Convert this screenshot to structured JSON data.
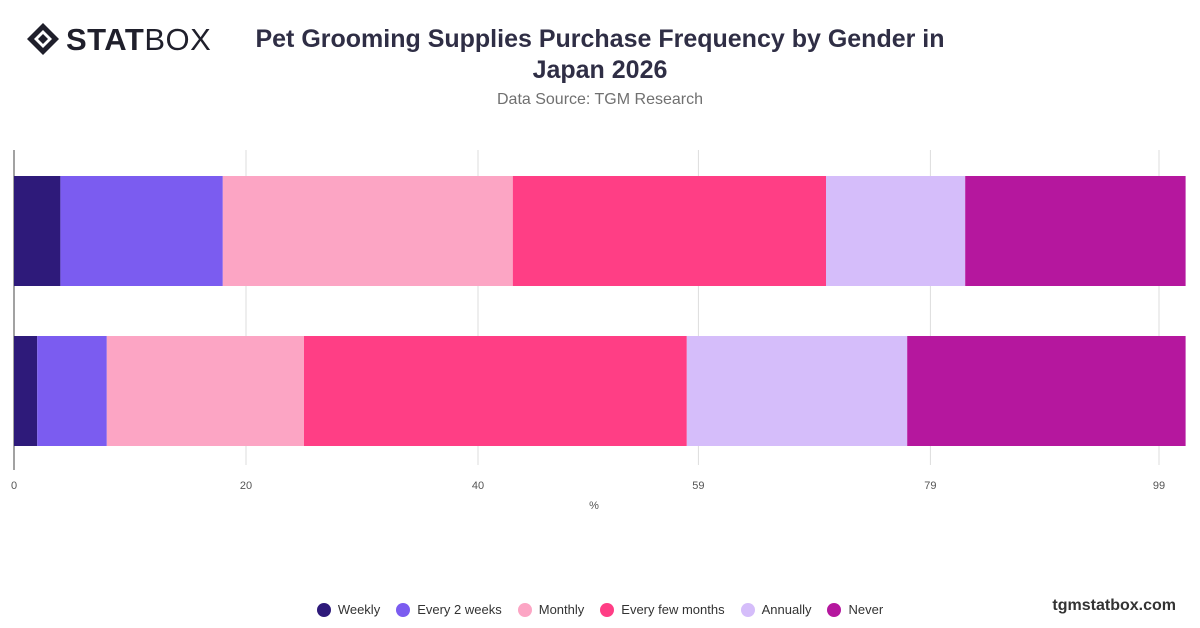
{
  "brand": {
    "logo_bold": "STAT",
    "logo_light": "BOX",
    "watermark": "tgmstatbox.com"
  },
  "header": {
    "title": "Pet Grooming Supplies Purchase Frequency by Gender in Japan 2026",
    "subtitle": "Data Source: TGM Research"
  },
  "chart_data": {
    "type": "bar",
    "orientation": "horizontal",
    "stacked": true,
    "categories": [
      "",
      ""
    ],
    "series": [
      {
        "name": "Weekly",
        "color": "#2e1a7a",
        "values": [
          4,
          2
        ]
      },
      {
        "name": "Every 2 weeks",
        "color": "#7b5cf0",
        "values": [
          14,
          6
        ]
      },
      {
        "name": "Monthly",
        "color": "#fca5c4",
        "values": [
          25,
          17
        ]
      },
      {
        "name": "Every few months",
        "color": "#ff3e85",
        "values": [
          27,
          33
        ]
      },
      {
        "name": "Annually",
        "color": "#d5bdfa",
        "values": [
          12,
          19
        ]
      },
      {
        "name": "Never",
        "color": "#b5179e",
        "values": [
          19,
          24
        ]
      }
    ],
    "xlim": [
      0,
      100
    ],
    "xticks": [
      0,
      20,
      40,
      59,
      79,
      99
    ],
    "xlabel": "%",
    "grid": true,
    "legend_position": "bottom"
  }
}
